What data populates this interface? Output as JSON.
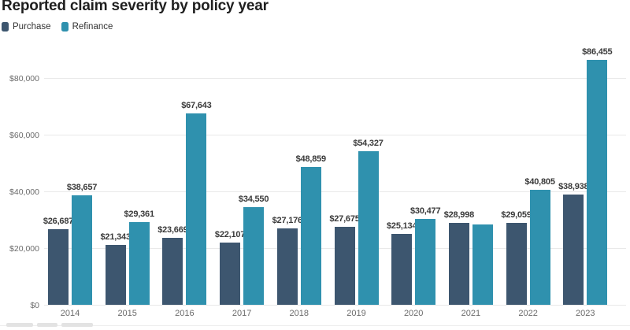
{
  "title": "Reported claim severity by policy year",
  "legend": {
    "items": [
      {
        "label": "Purchase",
        "color": "#3d566f"
      },
      {
        "label": "Refinance",
        "color": "#2f91ae"
      }
    ]
  },
  "chart_data": {
    "type": "bar",
    "title": "Reported claim severity by policy year",
    "categories": [
      "2014",
      "2015",
      "2016",
      "2017",
      "2018",
      "2019",
      "2020",
      "2021",
      "2022",
      "2023"
    ],
    "series": [
      {
        "name": "Purchase",
        "color": "#3d566f",
        "values": [
          26687,
          21343,
          23669,
          22107,
          27176,
          27675,
          25134,
          28998,
          29059,
          38938
        ],
        "labels": [
          "$26,687",
          "$21,343",
          "$23,669",
          "$22,107",
          "$27,176",
          "$27,675",
          "$25,134",
          "$28,998",
          "$29,059",
          "$38,938"
        ]
      },
      {
        "name": "Refinance",
        "color": "#2f91ae",
        "values": [
          38657,
          29361,
          67643,
          34550,
          48859,
          54327,
          30477,
          28600,
          40805,
          86455
        ],
        "labels": [
          "$38,657",
          "$29,361",
          "$67,643",
          "$34,550",
          "$48,859",
          "$54,327",
          "$30,477",
          "",
          "$40,805",
          "$86,455"
        ]
      }
    ],
    "xlabel": "",
    "ylabel": "",
    "ylim": [
      0,
      90000
    ],
    "yticks": [
      {
        "value": 0,
        "label": "$0"
      },
      {
        "value": 20000,
        "label": "$20,000"
      },
      {
        "value": 40000,
        "label": "$40,000"
      },
      {
        "value": 60000,
        "label": "$60,000"
      },
      {
        "value": 80000,
        "label": "$80,000"
      }
    ],
    "grid": true,
    "legend_position": "top-left",
    "value_label_format": "$#,##0"
  },
  "colors": {
    "background": "#ffffff",
    "grid": "#e9e9e9",
    "axis_text": "#6b6b6b",
    "value_label_text": "#3a3a3a",
    "title_text": "#1f1f1f"
  }
}
